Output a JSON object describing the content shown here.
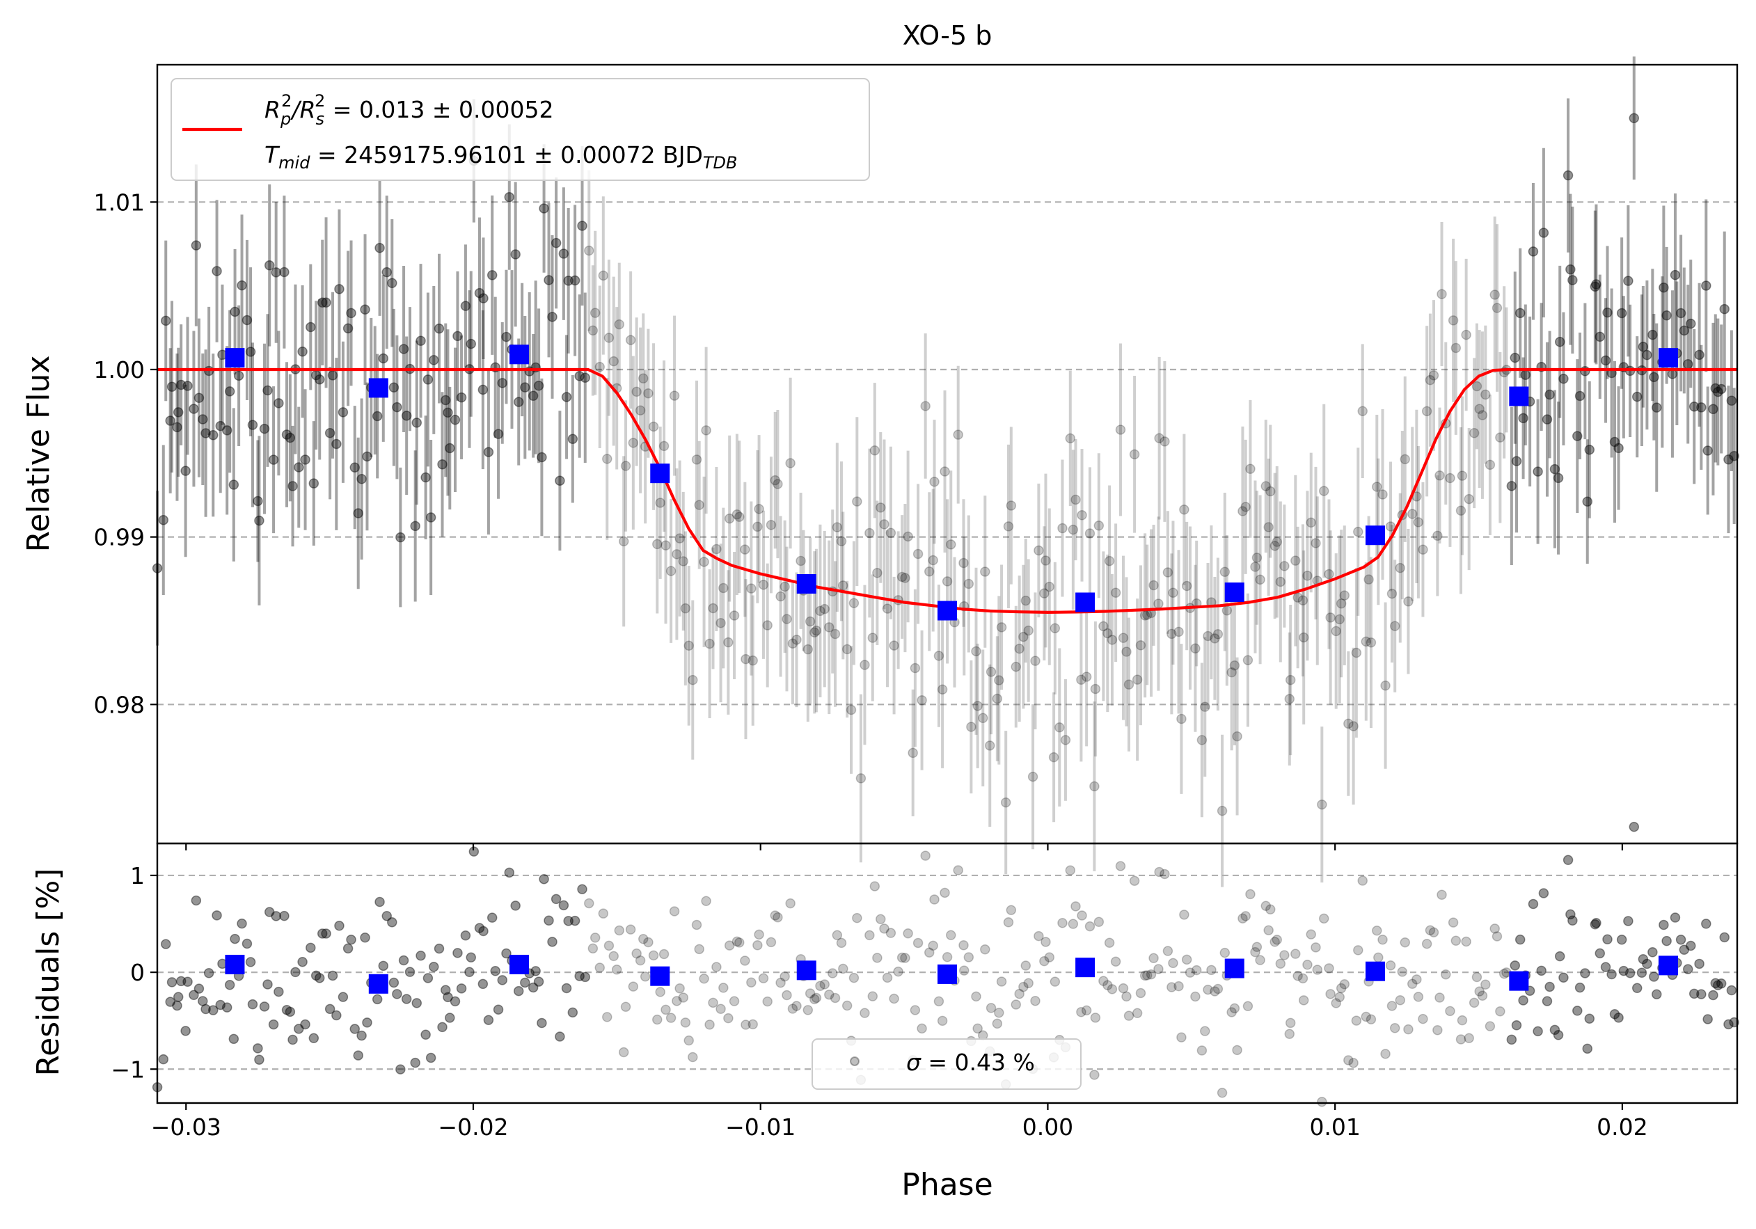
{
  "chart_data": [
    {
      "panel": "main",
      "type": "scatter",
      "title": "XO-5 b",
      "xlabel": "",
      "ylabel": "Relative Flux",
      "xlim": [
        -0.031,
        0.024
      ],
      "ylim": [
        0.9717,
        1.0182
      ],
      "grid": "horizontal dashed",
      "x_ticks": [
        -0.03,
        -0.02,
        -0.01,
        0.0,
        0.01,
        0.02
      ],
      "y_ticks": [
        0.98,
        0.99,
        1.0,
        1.01
      ],
      "y_tick_labels": [
        "0.98",
        "0.99",
        "1.00",
        "1.01"
      ],
      "legend": {
        "position": "upper left",
        "line1_parts": [
          "R",
          "p",
          "2",
          "/R",
          "s",
          "2",
          " = 0.013 ± 0.00052"
        ],
        "line2_parts": [
          "T",
          "mid",
          " = 2459175.96101 ± 0.00072 BJD",
          "TDB"
        ]
      },
      "series": [
        {
          "name": "transit model",
          "kind": "line",
          "color": "#ff0000",
          "x": [
            -0.031,
            -0.016,
            -0.0155,
            -0.015,
            -0.0145,
            -0.014,
            -0.0135,
            -0.013,
            -0.0125,
            -0.012,
            -0.0115,
            -0.011,
            -0.01,
            -0.009,
            -0.008,
            -0.007,
            -0.006,
            -0.005,
            -0.004,
            -0.003,
            -0.002,
            -0.001,
            0.0,
            0.001,
            0.002,
            0.003,
            0.004,
            0.005,
            0.006,
            0.007,
            0.008,
            0.009,
            0.01,
            0.011,
            0.0115,
            0.012,
            0.0125,
            0.013,
            0.0135,
            0.014,
            0.0145,
            0.015,
            0.0155,
            0.016,
            0.024
          ],
          "y": [
            1.0,
            1.0,
            0.9996,
            0.9986,
            0.9973,
            0.9958,
            0.9941,
            0.9922,
            0.9905,
            0.9892,
            0.9887,
            0.9883,
            0.9878,
            0.9874,
            0.987,
            0.9867,
            0.9864,
            0.9861,
            0.9859,
            0.9857,
            0.98558,
            0.98553,
            0.9855,
            0.98552,
            0.98556,
            0.98563,
            0.9857,
            0.9858,
            0.9859,
            0.9861,
            0.9864,
            0.9869,
            0.9875,
            0.9882,
            0.9888,
            0.9901,
            0.9918,
            0.9938,
            0.9958,
            0.9975,
            0.9988,
            0.9996,
            0.99995,
            1.0,
            1.0
          ]
        },
        {
          "name": "binned data",
          "kind": "square",
          "color": "#0000ff",
          "x": [
            -0.0283,
            -0.0233,
            -0.0184,
            -0.0135,
            -0.0084,
            -0.0035,
            0.0013,
            0.0065,
            0.0114,
            0.0164,
            0.0216
          ],
          "y": [
            1.0007,
            0.9989,
            1.0009,
            0.9938,
            0.9872,
            0.9856,
            0.9861,
            0.9867,
            0.9901,
            0.9984,
            1.0007
          ]
        }
      ]
    },
    {
      "panel": "residuals",
      "type": "scatter",
      "xlabel": "Phase",
      "ylabel": "Residuals [%]",
      "xlim": [
        -0.031,
        0.024
      ],
      "ylim": [
        -1.35,
        1.33
      ],
      "grid": "horizontal dashed",
      "x_ticks": [
        -0.03,
        -0.02,
        -0.01,
        0.0,
        0.01,
        0.02
      ],
      "x_tick_labels": [
        "−0.03",
        "−0.02",
        "−0.01",
        "0.00",
        "0.01",
        "0.02"
      ],
      "y_ticks": [
        -1,
        0,
        1
      ],
      "y_tick_labels": [
        "−1",
        "0",
        "1"
      ],
      "legend": {
        "position": "lower center",
        "parts": [
          "σ",
          " = 0.43 %"
        ]
      },
      "series": [
        {
          "name": "binned residuals",
          "kind": "square",
          "color": "#0000ff",
          "x": [
            -0.0283,
            -0.0233,
            -0.0184,
            -0.0135,
            -0.0084,
            -0.0035,
            0.0013,
            0.0065,
            0.0114,
            0.0164,
            0.0216
          ],
          "y": [
            0.08,
            -0.12,
            0.08,
            -0.04,
            0.02,
            -0.02,
            0.05,
            0.04,
            0.01,
            -0.09,
            0.07
          ]
        }
      ]
    }
  ]
}
